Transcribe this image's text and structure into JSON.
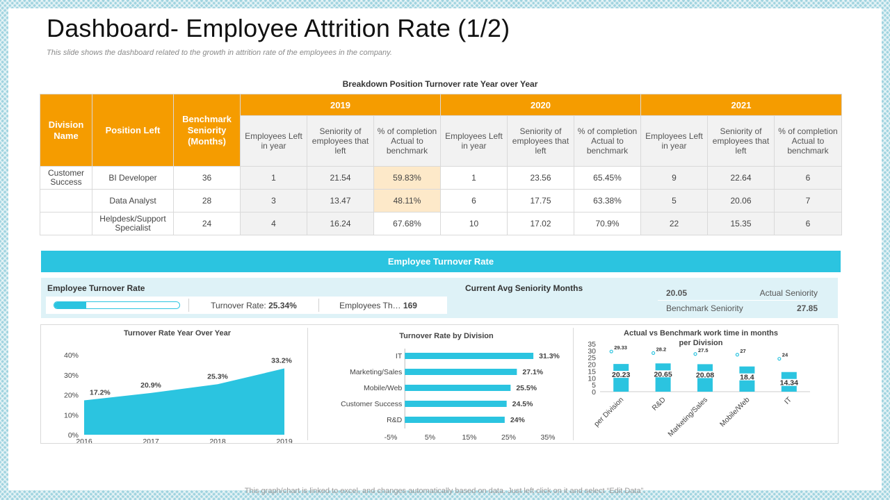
{
  "title": "Dashboard- Employee Attrition Rate (1/2)",
  "subtitle": "This slide shows the dashboard related to the growth in attrition rate of the employees in the company.",
  "table": {
    "title": "Breakdown Position Turnover rate Year over Year",
    "head": {
      "division": "Division Name",
      "position": "Position Left",
      "benchmark": "Benchmark Seniority (Months)",
      "years": [
        "2019",
        "2020",
        "2021"
      ],
      "sub": [
        "Employees Left in year",
        "Seniority of employees that left",
        "% of completion Actual to benchmark"
      ]
    },
    "rows": [
      {
        "division": "Customer Success",
        "position": "BI Developer",
        "benchmark": "36",
        "y2019": [
          "1",
          "21.54",
          "59.83%"
        ],
        "y2020": [
          "1",
          "23.56",
          "65.45%"
        ],
        "y2021": [
          "9",
          "22.64",
          "6"
        ]
      },
      {
        "division": "",
        "position": "Data Analyst",
        "benchmark": "28",
        "y2019": [
          "3",
          "13.47",
          "48.11%"
        ],
        "y2020": [
          "6",
          "17.75",
          "63.38%"
        ],
        "y2021": [
          "5",
          "20.06",
          "7"
        ]
      },
      {
        "division": "",
        "position": "Helpdesk/Support Specialist",
        "benchmark": "24",
        "y2019": [
          "4",
          "16.24",
          "67.68%"
        ],
        "y2020": [
          "10",
          "17.02",
          "70.9%"
        ],
        "y2021": [
          "22",
          "15.35",
          "6"
        ]
      }
    ]
  },
  "band_label": "Employee Turnover Rate",
  "kpi": {
    "turnover_label": "Employee Turnover Rate",
    "progress_percent": 25.34,
    "rate_label": "Turnover Rate:",
    "rate_value": "25.34%",
    "employees_label": "Employees Th…",
    "employees_value": "169",
    "seniority_label": "Current Avg  Seniority Months",
    "actual_value": "20.05",
    "actual_label": "Actual Seniority",
    "benchmark_label": "Benchmark Seniority",
    "benchmark_value": "27.85"
  },
  "colors": {
    "orange": "#f59c00",
    "cyan": "#2bc4e0",
    "highlight": "#fde9c9"
  },
  "chart_data": [
    {
      "type": "area",
      "title": "Turnover Rate Year Over Year",
      "x": [
        "2016",
        "2017",
        "2018",
        "2019"
      ],
      "values": [
        17.2,
        20.9,
        25.3,
        33.2
      ],
      "labels": [
        "17.2%",
        "20.9%",
        "25.3%",
        "33.2%"
      ],
      "ylim": [
        0,
        40
      ],
      "yticks": [
        "0%",
        "10%",
        "20%",
        "30%",
        "40%"
      ]
    },
    {
      "type": "bar",
      "orientation": "horizontal",
      "title": "Turnover Rate by Division",
      "categories": [
        "IT",
        "Marketing/Sales",
        "Mobile/Web",
        "Customer Success",
        "R&D"
      ],
      "values": [
        31.3,
        27.1,
        25.5,
        24.5,
        24
      ],
      "labels": [
        "31.3%",
        "27.1%",
        "25.5%",
        "24.5%",
        "24%"
      ],
      "xlim": [
        -5,
        35
      ],
      "xticks": [
        "-5%",
        "5%",
        "15%",
        "25%",
        "35%"
      ]
    },
    {
      "type": "bar",
      "title": "Actual vs Benchmark work time in months per Division",
      "categories": [
        "per Division",
        "R&D",
        "Marketing/Sales",
        "Mobile/Web",
        "IT"
      ],
      "series": [
        {
          "name": "Actual",
          "values": [
            20.23,
            20.65,
            20.08,
            18.4,
            14.34
          ],
          "labels": [
            "20.23",
            "20.65",
            "20.08",
            "18.4",
            "14.34"
          ]
        },
        {
          "name": "Benchmark",
          "values": [
            29.33,
            28.2,
            27.5,
            27,
            24
          ],
          "labels": [
            "29.33",
            "28.2",
            "27.5",
            "27",
            "24"
          ]
        }
      ],
      "ylim": [
        0,
        35
      ],
      "yticks": [
        "0",
        "5",
        "10",
        "15",
        "20",
        "25",
        "30",
        "35"
      ]
    }
  ],
  "footer": "This graph/chart is linked to excel, and changes automatically based on data. Just left click on it and select “Edit Data”."
}
